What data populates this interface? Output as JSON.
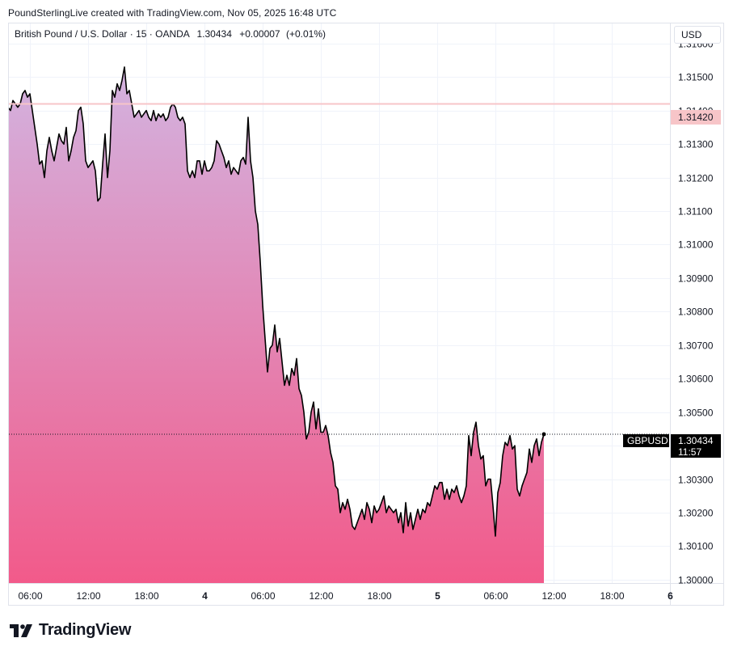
{
  "header": {
    "attribution": "PoundSterlingLive created with TradingView.com, Nov 05, 2025 16:48 UTC"
  },
  "legend": {
    "symbol_name": "British Pound / U.S. Dollar",
    "interval": "15",
    "exchange": "OANDA",
    "last": "1.30434",
    "change": "+0.00007",
    "change_pct": "(+0.01%)"
  },
  "currency_button": "USD",
  "price_tag": {
    "symbol": "GBPUSD",
    "price": "1.30434",
    "countdown": "11:57"
  },
  "level_line": {
    "price": 1.3142,
    "label": "1.31420",
    "color": "#f7c5c8"
  },
  "logo": {
    "text": "TradingView"
  },
  "colors": {
    "line": "#000000",
    "fill_top": "#d3b3e0",
    "fill_bottom": "#f25a8a",
    "grid": "#f0f3fa",
    "tag_bg": "#000000"
  },
  "chart_data": {
    "type": "area",
    "symbol": "GBPUSD",
    "y_ticks": [
      "1.30000",
      "1.30100",
      "1.30200",
      "1.30300",
      "1.30400",
      "1.30500",
      "1.30600",
      "1.30700",
      "1.30800",
      "1.30900",
      "1.31000",
      "1.31100",
      "1.31200",
      "1.31300",
      "1.31400",
      "1.31500",
      "1.31600"
    ],
    "ylim": [
      1.2999,
      1.3166
    ],
    "x_ticks": [
      {
        "label": "06:00",
        "hours": 6,
        "bold": false
      },
      {
        "label": "12:00",
        "hours": 12,
        "bold": false
      },
      {
        "label": "18:00",
        "hours": 18,
        "bold": false
      },
      {
        "label": "4",
        "hours": 24,
        "bold": true
      },
      {
        "label": "06:00",
        "hours": 30,
        "bold": false
      },
      {
        "label": "12:00",
        "hours": 36,
        "bold": false
      },
      {
        "label": "18:00",
        "hours": 42,
        "bold": false
      },
      {
        "label": "5",
        "hours": 48,
        "bold": true
      },
      {
        "label": "06:00",
        "hours": 54,
        "bold": false
      },
      {
        "label": "12:00",
        "hours": 60,
        "bold": false
      },
      {
        "label": "18:00",
        "hours": 66,
        "bold": false
      },
      {
        "label": "6",
        "hours": 72,
        "bold": true
      }
    ],
    "series": [
      {
        "points": [
          [
            3.0,
            1.3139
          ],
          [
            3.25,
            1.3144
          ],
          [
            3.5,
            1.3143
          ],
          [
            3.75,
            1.3141
          ],
          [
            4.0,
            1.314
          ],
          [
            4.25,
            1.3143
          ],
          [
            4.5,
            1.3142
          ],
          [
            4.75,
            1.3141
          ],
          [
            5.0,
            1.3142
          ],
          [
            5.25,
            1.3145
          ],
          [
            5.5,
            1.3146
          ],
          [
            5.75,
            1.3144
          ],
          [
            6.0,
            1.3145
          ],
          [
            6.25,
            1.314
          ],
          [
            6.5,
            1.3135
          ],
          [
            6.75,
            1.313
          ],
          [
            7.0,
            1.3124
          ],
          [
            7.25,
            1.3125
          ],
          [
            7.5,
            1.312
          ],
          [
            7.75,
            1.3128
          ],
          [
            8.0,
            1.3132
          ],
          [
            8.25,
            1.3128
          ],
          [
            8.5,
            1.3125
          ],
          [
            8.75,
            1.3129
          ],
          [
            9.0,
            1.3133
          ],
          [
            9.25,
            1.3131
          ],
          [
            9.5,
            1.313
          ],
          [
            9.75,
            1.3135
          ],
          [
            10.0,
            1.3125
          ],
          [
            10.25,
            1.3128
          ],
          [
            10.5,
            1.3132
          ],
          [
            10.75,
            1.3134
          ],
          [
            11.0,
            1.314
          ],
          [
            11.25,
            1.3141
          ],
          [
            11.5,
            1.3136
          ],
          [
            11.75,
            1.3125
          ],
          [
            12.0,
            1.3123
          ],
          [
            12.25,
            1.3124
          ],
          [
            12.5,
            1.3125
          ],
          [
            12.75,
            1.3122
          ],
          [
            13.0,
            1.3113
          ],
          [
            13.25,
            1.3114
          ],
          [
            13.5,
            1.3124
          ],
          [
            13.75,
            1.3133
          ],
          [
            14.0,
            1.312
          ],
          [
            14.25,
            1.3128
          ],
          [
            14.5,
            1.3146
          ],
          [
            14.75,
            1.3144
          ],
          [
            15.0,
            1.3148
          ],
          [
            15.25,
            1.3146
          ],
          [
            15.5,
            1.3149
          ],
          [
            15.75,
            1.3153
          ],
          [
            16.0,
            1.3145
          ],
          [
            16.25,
            1.3146
          ],
          [
            16.5,
            1.3142
          ],
          [
            16.75,
            1.3138
          ],
          [
            17.0,
            1.3139
          ],
          [
            17.25,
            1.314
          ],
          [
            17.5,
            1.3138
          ],
          [
            17.75,
            1.3139
          ],
          [
            18.0,
            1.314
          ],
          [
            18.25,
            1.3138
          ],
          [
            18.5,
            1.3137
          ],
          [
            18.75,
            1.314
          ],
          [
            19.0,
            1.3137
          ],
          [
            19.25,
            1.3139
          ],
          [
            19.5,
            1.3138
          ],
          [
            19.75,
            1.3139
          ],
          [
            20.0,
            1.3137
          ],
          [
            20.25,
            1.3138
          ],
          [
            20.5,
            1.3141
          ],
          [
            20.75,
            1.3142
          ],
          [
            21.0,
            1.3141
          ],
          [
            21.25,
            1.3138
          ],
          [
            21.5,
            1.3137
          ],
          [
            21.75,
            1.3138
          ],
          [
            22.0,
            1.3136
          ],
          [
            22.25,
            1.3122
          ],
          [
            22.5,
            1.312
          ],
          [
            22.75,
            1.3122
          ],
          [
            23.0,
            1.312
          ],
          [
            23.25,
            1.3125
          ],
          [
            23.5,
            1.3125
          ],
          [
            23.75,
            1.3121
          ],
          [
            24.0,
            1.3125
          ],
          [
            24.25,
            1.3122
          ],
          [
            24.5,
            1.3122
          ],
          [
            24.75,
            1.3123
          ],
          [
            25.0,
            1.3125
          ],
          [
            25.25,
            1.3131
          ],
          [
            25.5,
            1.313
          ],
          [
            25.75,
            1.3128
          ],
          [
            26.0,
            1.3126
          ],
          [
            26.25,
            1.3123
          ],
          [
            26.5,
            1.3125
          ],
          [
            26.75,
            1.3121
          ],
          [
            27.0,
            1.3123
          ],
          [
            27.25,
            1.3122
          ],
          [
            27.5,
            1.3121
          ],
          [
            27.75,
            1.3125
          ],
          [
            28.0,
            1.3126
          ],
          [
            28.25,
            1.3124
          ],
          [
            28.5,
            1.3138
          ],
          [
            28.75,
            1.3125
          ],
          [
            29.0,
            1.312
          ],
          [
            29.25,
            1.311
          ],
          [
            29.5,
            1.3106
          ],
          [
            29.75,
            1.3095
          ],
          [
            30.0,
            1.3082
          ],
          [
            30.25,
            1.3072
          ],
          [
            30.5,
            1.3062
          ],
          [
            30.75,
            1.3069
          ],
          [
            31.0,
            1.307
          ],
          [
            31.25,
            1.3076
          ],
          [
            31.5,
            1.3068
          ],
          [
            31.75,
            1.3072
          ],
          [
            32.0,
            1.3065
          ],
          [
            32.25,
            1.3058
          ],
          [
            32.5,
            1.3061
          ],
          [
            32.75,
            1.3058
          ],
          [
            33.0,
            1.3063
          ],
          [
            33.25,
            1.3061
          ],
          [
            33.5,
            1.3066
          ],
          [
            33.75,
            1.3057
          ],
          [
            34.0,
            1.3055
          ],
          [
            34.25,
            1.305
          ],
          [
            34.5,
            1.3042
          ],
          [
            34.75,
            1.3044
          ],
          [
            35.0,
            1.305
          ],
          [
            35.25,
            1.3053
          ],
          [
            35.5,
            1.3045
          ],
          [
            35.75,
            1.3051
          ],
          [
            36.0,
            1.3044
          ],
          [
            36.25,
            1.3044
          ],
          [
            36.5,
            1.3046
          ],
          [
            36.75,
            1.3043
          ],
          [
            37.0,
            1.3038
          ],
          [
            37.25,
            1.3035
          ],
          [
            37.5,
            1.3028
          ],
          [
            37.75,
            1.3027
          ],
          [
            38.0,
            1.302
          ],
          [
            38.25,
            1.3023
          ],
          [
            38.5,
            1.3021
          ],
          [
            38.75,
            1.3024
          ],
          [
            39.0,
            1.3021
          ],
          [
            39.25,
            1.3016
          ],
          [
            39.5,
            1.3015
          ],
          [
            39.75,
            1.3017
          ],
          [
            40.0,
            1.3019
          ],
          [
            40.25,
            1.3021
          ],
          [
            40.5,
            1.3018
          ],
          [
            40.75,
            1.3023
          ],
          [
            41.0,
            1.3021
          ],
          [
            41.25,
            1.3017
          ],
          [
            41.5,
            1.3022
          ],
          [
            41.75,
            1.302
          ],
          [
            42.0,
            1.3021
          ],
          [
            42.25,
            1.3023
          ],
          [
            42.5,
            1.3025
          ],
          [
            42.75,
            1.302
          ],
          [
            43.0,
            1.3022
          ],
          [
            43.25,
            1.3021
          ],
          [
            43.5,
            1.302
          ],
          [
            43.75,
            1.3021
          ],
          [
            44.0,
            1.3017
          ],
          [
            44.25,
            1.302
          ],
          [
            44.5,
            1.3014
          ],
          [
            44.75,
            1.3023
          ],
          [
            45.0,
            1.3016
          ],
          [
            45.25,
            1.302
          ],
          [
            45.5,
            1.3015
          ],
          [
            45.75,
            1.3018
          ],
          [
            46.0,
            1.3021
          ],
          [
            46.25,
            1.3018
          ],
          [
            46.5,
            1.3021
          ],
          [
            46.75,
            1.302
          ],
          [
            47.0,
            1.3023
          ],
          [
            47.25,
            1.3022
          ],
          [
            47.5,
            1.3025
          ],
          [
            47.75,
            1.3028
          ],
          [
            48.0,
            1.3027
          ],
          [
            48.25,
            1.3029
          ],
          [
            48.5,
            1.3029
          ],
          [
            48.75,
            1.3024
          ],
          [
            49.0,
            1.3027
          ],
          [
            49.25,
            1.3024
          ],
          [
            49.5,
            1.3027
          ],
          [
            49.75,
            1.3026
          ],
          [
            50.0,
            1.3028
          ],
          [
            50.25,
            1.3025
          ],
          [
            50.5,
            1.3023
          ],
          [
            50.75,
            1.3025
          ],
          [
            51.0,
            1.3028
          ],
          [
            51.25,
            1.3043
          ],
          [
            51.5,
            1.3037
          ],
          [
            51.75,
            1.3044
          ],
          [
            52.0,
            1.3047
          ],
          [
            52.25,
            1.304
          ],
          [
            52.5,
            1.3036
          ],
          [
            52.75,
            1.3037
          ],
          [
            53.0,
            1.3028
          ],
          [
            53.25,
            1.303
          ],
          [
            53.5,
            1.303
          ],
          [
            53.75,
            1.3022
          ],
          [
            54.0,
            1.3013
          ],
          [
            54.25,
            1.3026
          ],
          [
            54.5,
            1.3029
          ],
          [
            54.75,
            1.3037
          ],
          [
            55.0,
            1.3041
          ],
          [
            55.25,
            1.304
          ],
          [
            55.5,
            1.3043
          ],
          [
            55.75,
            1.3039
          ],
          [
            56.0,
            1.304
          ],
          [
            56.25,
            1.3027
          ],
          [
            56.5,
            1.3025
          ],
          [
            56.75,
            1.3028
          ],
          [
            57.0,
            1.303
          ],
          [
            57.25,
            1.3032
          ],
          [
            57.5,
            1.3039
          ],
          [
            57.75,
            1.3035
          ],
          [
            58.0,
            1.304
          ],
          [
            58.25,
            1.3042
          ],
          [
            58.5,
            1.3037
          ],
          [
            58.75,
            1.3041
          ],
          [
            59.0,
            1.30434
          ]
        ]
      }
    ]
  }
}
